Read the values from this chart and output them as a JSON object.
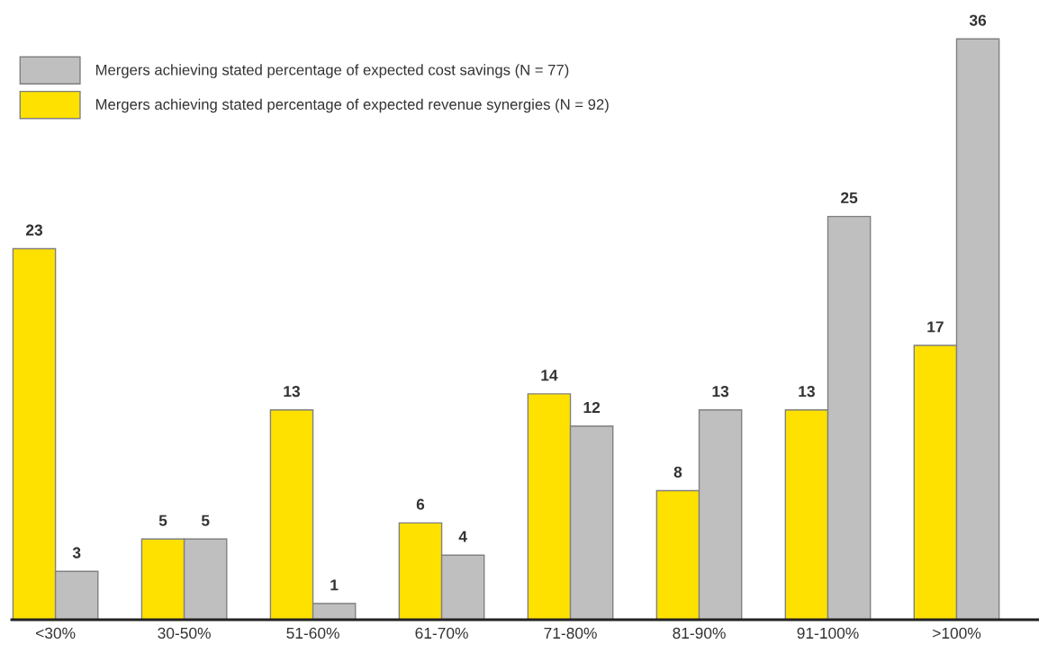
{
  "chart_data": {
    "type": "bar",
    "categories": [
      "<30%",
      "30-50%",
      "51-60%",
      "61-70%",
      "71-80%",
      "81-90%",
      "91-100%",
      ">100%"
    ],
    "series": [
      {
        "name": "Mergers achieving stated percentage of expected revenue synergies (N = 92)",
        "color": "#ffe100",
        "values": [
          23,
          5,
          13,
          6,
          14,
          8,
          13,
          17
        ]
      },
      {
        "name": "Mergers achieving stated percentage of expected cost savings (N = 77)",
        "color": "#bfbfbf",
        "values": [
          3,
          5,
          1,
          4,
          12,
          13,
          25,
          36
        ]
      }
    ],
    "data_labels": true,
    "legend": "top left",
    "tick_labels": "x",
    "grid": false
  }
}
